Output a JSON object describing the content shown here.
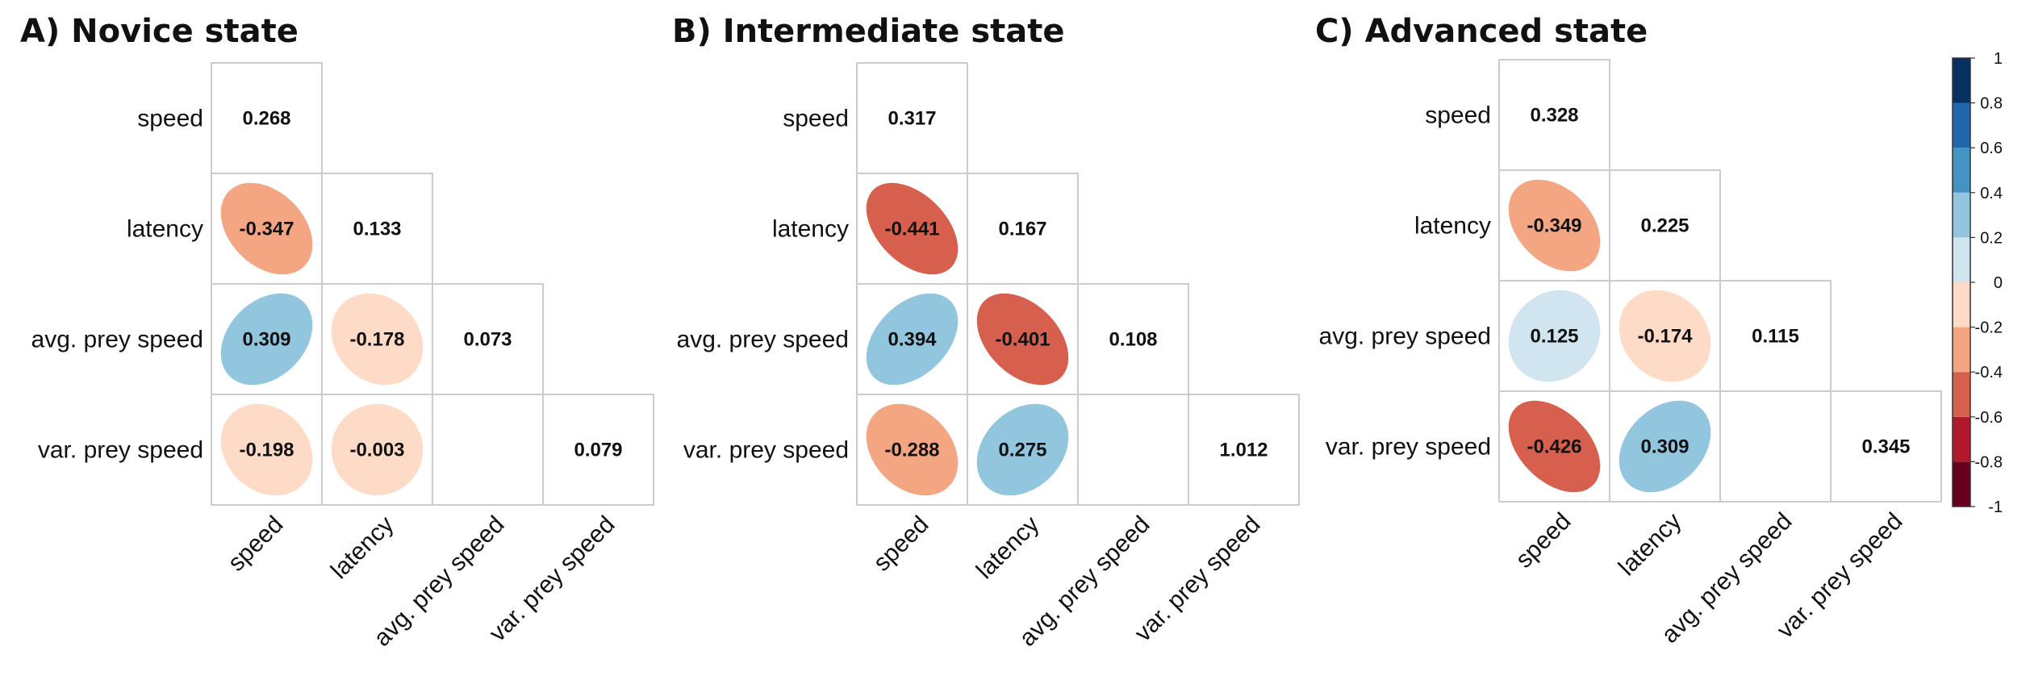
{
  "chart_data": {
    "type": "heatmap",
    "variables": [
      "speed",
      "latency",
      "avg. prey speed",
      "var. prey speed"
    ],
    "colorbar": {
      "ticks": [
        "1",
        "0.8",
        "0.6",
        "0.4",
        "0.2",
        "0",
        "-0.2",
        "-0.4",
        "-0.6",
        "-0.8",
        "-1"
      ],
      "range": [
        -1,
        1
      ],
      "colors": [
        "#67001F",
        "#B2182B",
        "#D6604D",
        "#F4A582",
        "#FDDBC7",
        "#D1E5F0",
        "#92C5DE",
        "#4393C3",
        "#2166AC",
        "#053061"
      ]
    },
    "panels": [
      {
        "title": "A) Novice state",
        "matrix": [
          [
            "0.268",
            null,
            null,
            null
          ],
          [
            "-0.347",
            "0.133",
            null,
            null
          ],
          [
            "0.309",
            "-0.178",
            "0.073",
            null
          ],
          [
            "-0.198",
            "-0.003",
            "",
            "0.079"
          ]
        ]
      },
      {
        "title": "B) Intermediate state",
        "matrix": [
          [
            "0.317",
            null,
            null,
            null
          ],
          [
            "-0.441",
            "0.167",
            null,
            null
          ],
          [
            "0.394",
            "-0.401",
            "0.108",
            null
          ],
          [
            "-0.288",
            "0.275",
            "",
            "1.012"
          ]
        ]
      },
      {
        "title": "C) Advanced state",
        "matrix": [
          [
            "0.328",
            null,
            null,
            null
          ],
          [
            "-0.349",
            "0.225",
            null,
            null
          ],
          [
            "0.125",
            "-0.174",
            "0.115",
            null
          ],
          [
            "-0.426",
            "0.309",
            "",
            "0.345"
          ]
        ]
      }
    ]
  }
}
